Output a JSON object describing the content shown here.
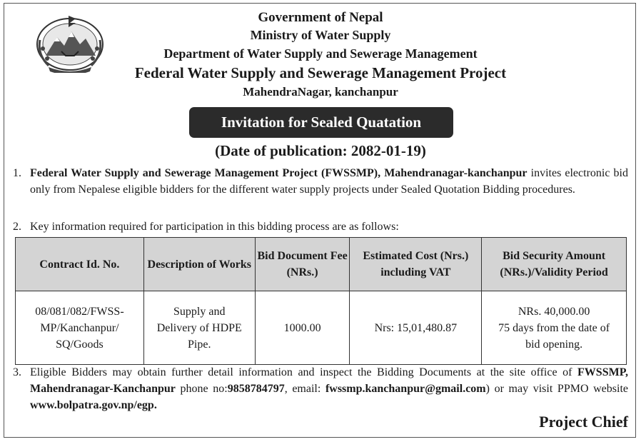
{
  "header": {
    "line1": "Government of Nepal",
    "line2": "Ministry of Water Supply",
    "line3": "Department of Water Supply and Sewerage Management",
    "line4": "Federal Water Supply and Sewerage Management Project",
    "line5": "MahendraNagar, kanchanpur"
  },
  "banner": "Invitation for Sealed Quatation",
  "publication": "(Date of publication: 2082-01-19)",
  "para1": {
    "num": "1.",
    "bold": "Federal Water Supply and Sewerage Management Project (FWSSMP), Mahendranagar-kanchanpur",
    "rest": " invites electronic bid only from Nepalese eligible bidders for the different water supply projects under Sealed Quotation Bidding procedures."
  },
  "para2": {
    "num": "2.",
    "text": "Key information required for participation in this bidding process are as follows:"
  },
  "table": {
    "headers": [
      "Contract Id. No.",
      "Description of Works",
      "Bid Document Fee (NRs.)",
      "Estimated Cost (Nrs.) including VAT",
      "Bid Security Amount (NRs.)/Validity Period"
    ],
    "row": {
      "contract_l1": "08/081/082/FWSS-",
      "contract_l2": "MP/Kanchanpur/",
      "contract_l3": "SQ/Goods",
      "desc_l1": "Supply and",
      "desc_l2": "Delivery of HDPE",
      "desc_l3": "Pipe.",
      "fee": "1000.00",
      "cost": "Nrs: 15,01,480.87",
      "security_l1": "NRs. 40,000.00",
      "security_l2": "75 days  from the date of",
      "security_l3": "bid opening."
    }
  },
  "para3": {
    "num": "3.",
    "t1": "Eligible Bidders may obtain further detail information and inspect the Bidding Documents at the site office of ",
    "b1": "FWSSMP, Mahendranagar-Kanchanpur",
    "t2": " phone no:",
    "b2": "9858784797",
    "t3": ", email: ",
    "b3": "fwssmp.kanchanpur@gmail.com",
    "t4": ") or may visit PPMO website ",
    "b4": "www.bolpatra.gov.np/egp."
  },
  "signature": "Project Chief"
}
